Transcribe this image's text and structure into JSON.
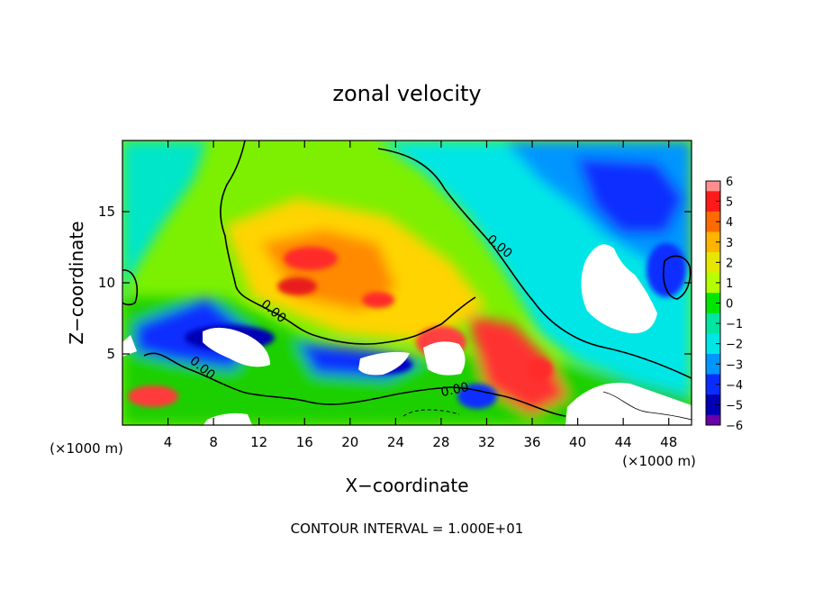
{
  "chart_data": {
    "type": "heatmap",
    "title": "zonal velocity",
    "xlabel": "X−coordinate",
    "ylabel": "Z−coordinate",
    "x_unit_left": "(×1000 m)",
    "x_unit_right": "(×1000 m)",
    "footer": "CONTOUR INTERVAL = 1.000E+01",
    "xlim": [
      0,
      50
    ],
    "ylim": [
      0,
      20
    ],
    "xticks": [
      4,
      8,
      12,
      16,
      20,
      24,
      28,
      32,
      36,
      40,
      44,
      48
    ],
    "yticks": [
      5,
      10,
      15
    ],
    "contour_labels": [
      "0.00",
      "0.00",
      "0.00",
      "0.00"
    ],
    "colorbar": {
      "levels": [
        6,
        5,
        4,
        3,
        2,
        1,
        0,
        -1,
        -2,
        -3,
        -4,
        -5,
        -6
      ],
      "colors": [
        "#ff8f8f",
        "#ff1a1a",
        "#ff6a00",
        "#ffb400",
        "#e6e600",
        "#b4ff00",
        "#00e600",
        "#00e6a0",
        "#00e6e6",
        "#0096ff",
        "#0a2dff",
        "#0000b4",
        "#6a00aa"
      ]
    }
  }
}
